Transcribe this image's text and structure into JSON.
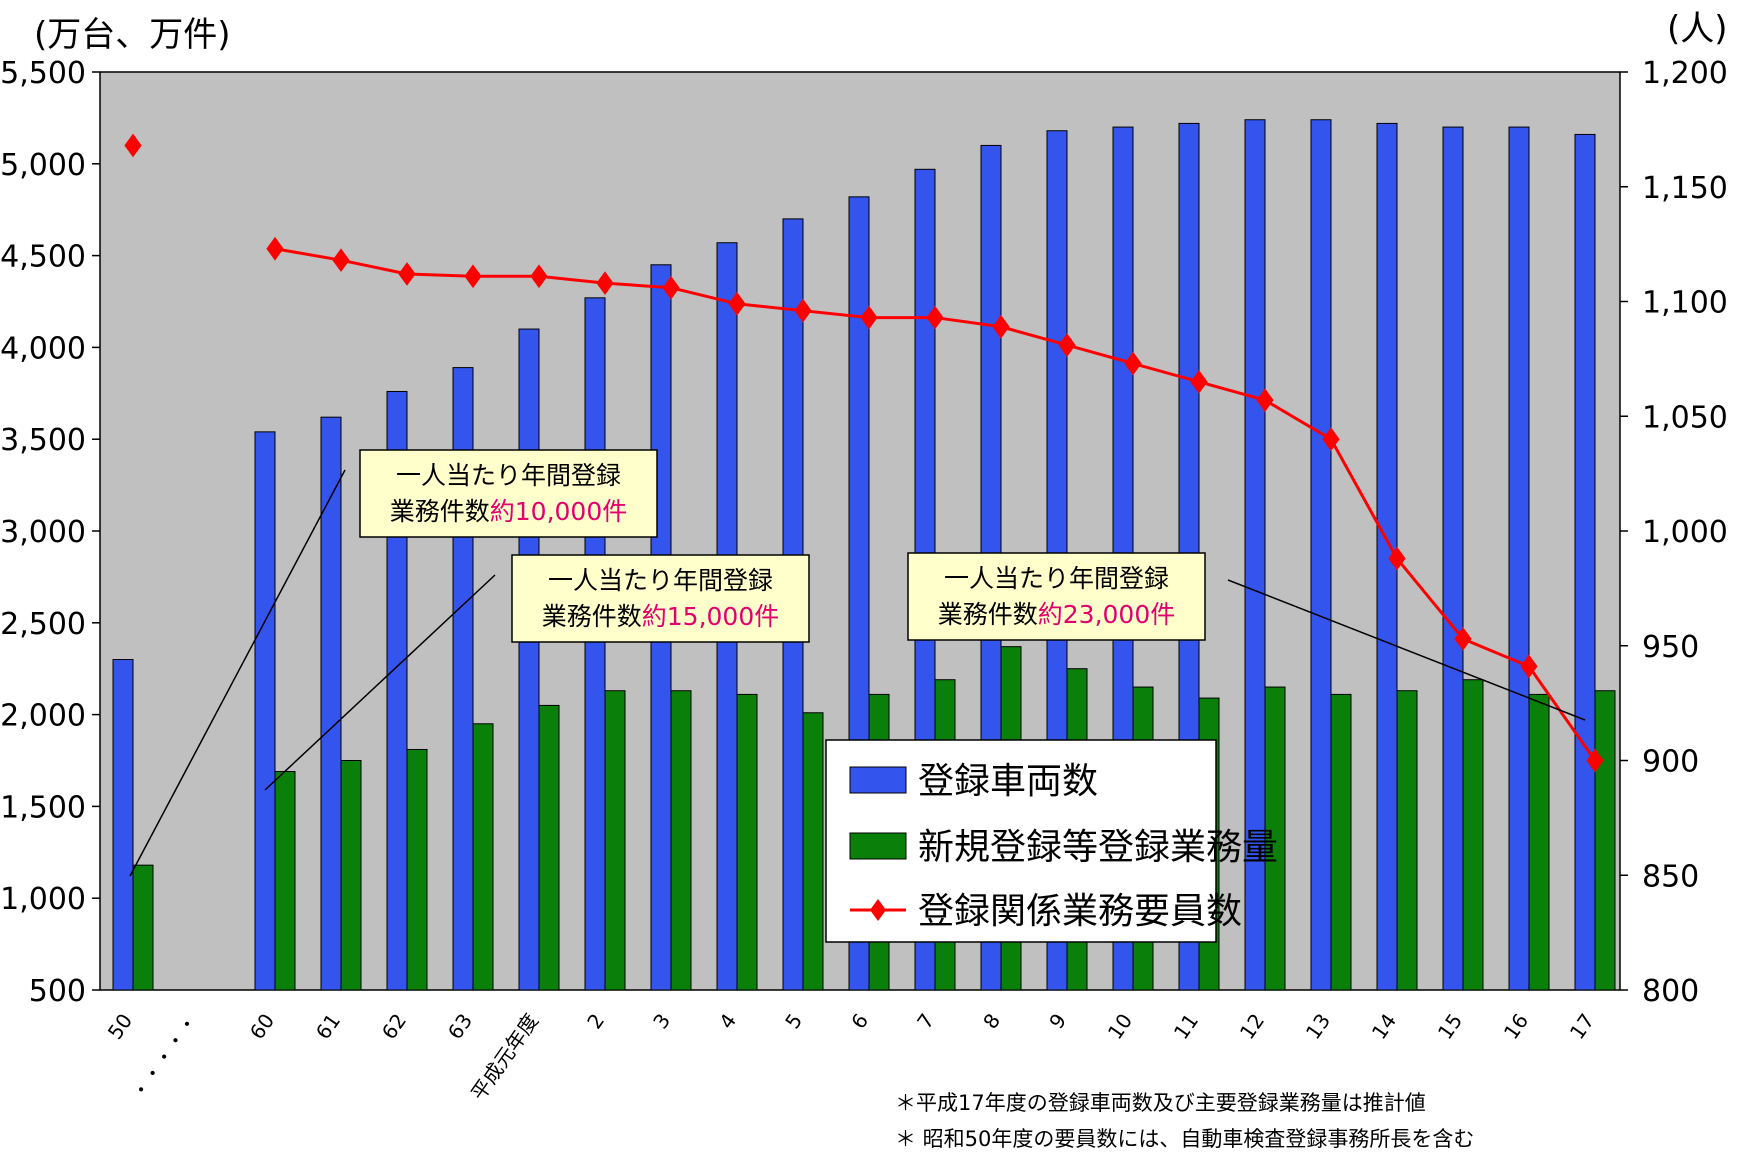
{
  "chart_data": {
    "type": "bar",
    "left_axis_unit": "(万台、万件)",
    "right_axis_unit": "(人)",
    "categories": [
      "50",
      "・・・・・",
      "60",
      "61",
      "62",
      "63",
      "平成元年度",
      "2",
      "3",
      "4",
      "5",
      "6",
      "7",
      "8",
      "9",
      "10",
      "11",
      "12",
      "13",
      "14",
      "15",
      "16",
      "17"
    ],
    "ylim_left": [
      500,
      5500
    ],
    "left_ticks": [
      "500",
      "1,000",
      "1,500",
      "2,000",
      "2,500",
      "3,000",
      "3,500",
      "4,000",
      "4,500",
      "5,000",
      "5,500"
    ],
    "ylim_right": [
      800,
      1200
    ],
    "right_ticks": [
      "800",
      "850",
      "900",
      "950",
      "1,000",
      "1,050",
      "1,100",
      "1,150",
      "1,200"
    ],
    "series": [
      {
        "name": "登録車両数",
        "type": "bar",
        "axis": "left",
        "color": "#3355ee",
        "values": [
          2300,
          null,
          3540,
          3620,
          3760,
          3890,
          4100,
          4270,
          4450,
          4570,
          4700,
          4820,
          4970,
          5100,
          5180,
          5200,
          5220,
          5240,
          5240,
          5220,
          5200,
          5200,
          5160
        ]
      },
      {
        "name": "新規登録等登録業務量",
        "type": "bar",
        "axis": "left",
        "color": "#0a7f0a",
        "values": [
          1180,
          null,
          1690,
          1750,
          1810,
          1950,
          2050,
          2130,
          2130,
          2110,
          2010,
          2110,
          2190,
          2370,
          2250,
          2150,
          2090,
          2150,
          2110,
          2130,
          2190,
          2110,
          2130
        ]
      },
      {
        "name": "登録関係業務要員数",
        "type": "line",
        "axis": "right",
        "color": "#ff0000",
        "values": [
          1168,
          null,
          1123,
          1118,
          1112,
          1111,
          1111,
          1108,
          1106,
          1099,
          1096,
          1093,
          1093,
          1089,
          1081,
          1073,
          1065,
          1057,
          1040,
          988,
          953,
          941,
          900
        ]
      }
    ],
    "annotations": [
      {
        "line1": "一人当たり年間登録",
        "line2_prefix": "業務件数",
        "line2_value": "約10,000件"
      },
      {
        "line1": "一人当たり年間登録",
        "line2_prefix": "業務件数",
        "line2_value": "約15,000件"
      },
      {
        "line1": "一人当たり年間登録",
        "line2_prefix": "業務件数",
        "line2_value": "約23,000件"
      }
    ],
    "notes": [
      "＊平成17年度の登録車両数及び主要登録業務量は推計値",
      "＊ 昭和50年度の要員数には、自動車検査登録事務所長を含む"
    ],
    "colors": {
      "plot_background": "#c0c0c0",
      "bar_blue": "#3355ee",
      "bar_green": "#0a7f0a",
      "line_red": "#ff0000",
      "callout_fill": "#ffffcc",
      "callout_value": "#e0006e"
    }
  }
}
